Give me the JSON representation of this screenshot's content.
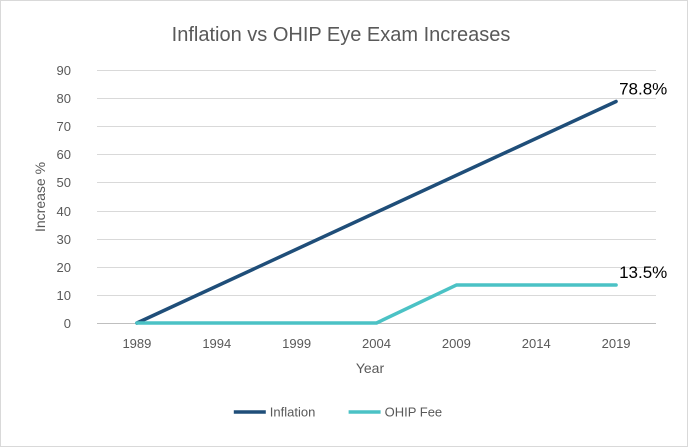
{
  "chart_data": {
    "type": "line",
    "title": "Inflation vs OHIP Eye Exam Increases",
    "xlabel": "Year",
    "ylabel": "Increase %",
    "categories": [
      "1989",
      "1994",
      "1999",
      "2004",
      "2009",
      "2014",
      "2019"
    ],
    "ylim": [
      0,
      90
    ],
    "yticks": [
      0,
      10,
      20,
      30,
      40,
      50,
      60,
      70,
      80,
      90
    ],
    "grid": true,
    "legend_position": "bottom",
    "series": [
      {
        "name": "Inflation",
        "color": "#1f4e79",
        "x": [
          "1989",
          "2019"
        ],
        "values": [
          0,
          78.8
        ],
        "end_label": "78.8%"
      },
      {
        "name": "OHIP Fee",
        "color": "#4bc2c5",
        "x": [
          "1989",
          "2004",
          "2009",
          "2019"
        ],
        "values": [
          0,
          0,
          13.5,
          13.5
        ],
        "end_label": "13.5%"
      }
    ]
  }
}
